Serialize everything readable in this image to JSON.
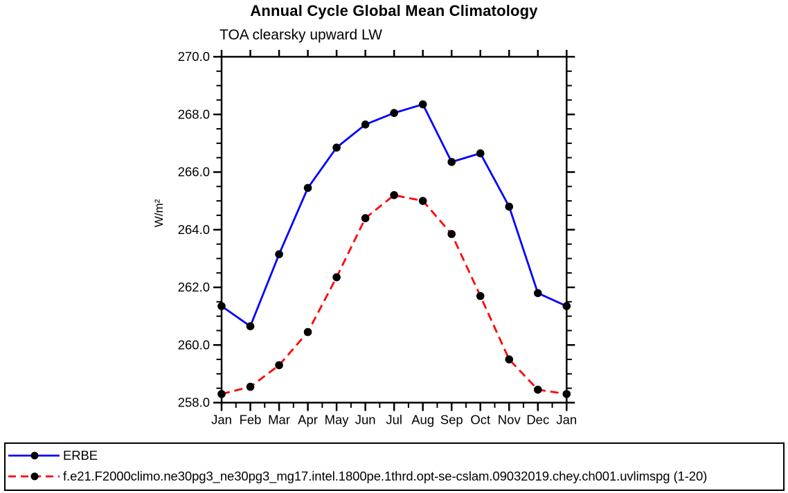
{
  "chart": {
    "title": "Annual Cycle Global Mean Climatology",
    "subtitle": "TOA clearsky upward LW",
    "y_axis_label": "W/m²"
  },
  "chart_data": {
    "type": "line",
    "title": "Annual Cycle Global Mean Climatology",
    "subtitle": "TOA clearsky upward LW",
    "xlabel": "",
    "ylabel": "W/m²",
    "x_categories": [
      "Jan",
      "Feb",
      "Mar",
      "Apr",
      "May",
      "Jun",
      "Jul",
      "Aug",
      "Sep",
      "Oct",
      "Nov",
      "Dec",
      "Jan"
    ],
    "ylim": [
      258.0,
      270.0
    ],
    "ytick_major_values": [
      258,
      260,
      262,
      264,
      266,
      268,
      270
    ],
    "ytick_major_labels": [
      "258.0",
      "260.0",
      "262.0",
      "264.0",
      "266.0",
      "268.0",
      "270.0"
    ],
    "ytick_minor_step": 0.5,
    "xtick_minor_step": 0.5,
    "grid": false,
    "legend_position": "bottom-box-full-width",
    "axis_color": "#000000",
    "marker": "filled-circle",
    "marker_color": "#000000",
    "series": [
      {
        "name": "ERBE",
        "color": "#0000ff",
        "line_style": "solid",
        "values": [
          261.35,
          260.65,
          263.15,
          265.45,
          266.85,
          267.65,
          268.05,
          268.35,
          266.35,
          266.65,
          264.8,
          261.8,
          261.35
        ]
      },
      {
        "name": "f.e21.F2000climo.ne30pg3_ne30pg3_mg17.intel.1800pe.1thrd.opt-se-cslam.09032019.chey.ch001.uvlimspg (1-20)",
        "color": "#ff0000",
        "line_style": "dashed",
        "values": [
          258.3,
          258.55,
          259.3,
          260.45,
          262.35,
          264.4,
          265.2,
          265.0,
          263.85,
          261.7,
          259.5,
          258.45,
          258.3
        ]
      }
    ]
  }
}
